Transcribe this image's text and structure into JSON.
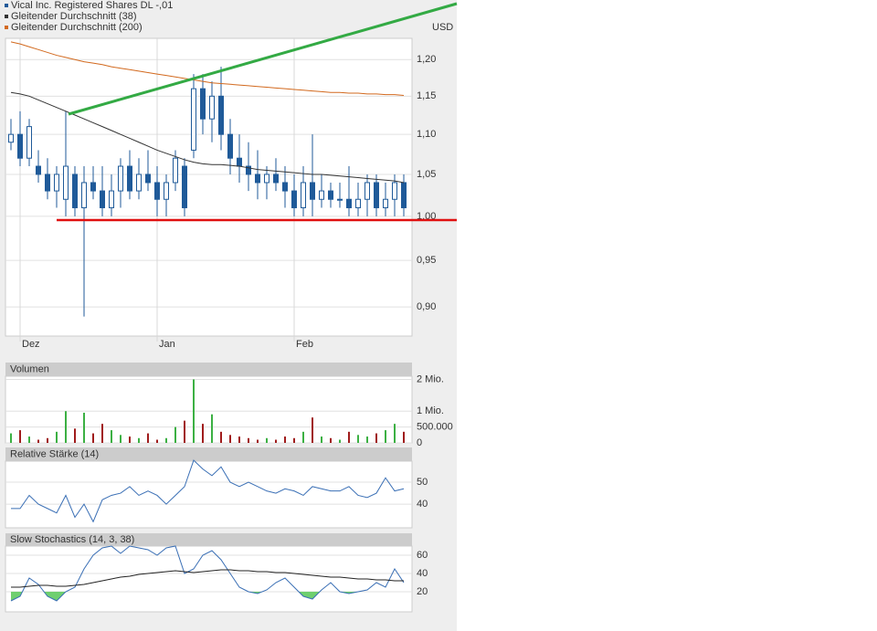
{
  "chart_data": [
    {
      "type": "candlestick",
      "categories": [
        null,
        "Dez",
        null,
        null,
        null,
        null,
        null,
        null,
        null,
        null,
        null,
        null,
        null,
        null,
        null,
        null,
        "Jan",
        null,
        null,
        null,
        null,
        null,
        null,
        null,
        null,
        null,
        null,
        null,
        null,
        null,
        null,
        "Feb",
        null,
        null,
        null,
        null,
        null,
        null,
        null,
        null,
        null,
        null,
        null,
        null
      ],
      "series": [
        {
          "name": "Vical Inc. Registered Shares DL -,01",
          "color": "#1f5a99",
          "open": [
            1.09,
            1.1,
            1.07,
            1.06,
            1.05,
            1.03,
            1.02,
            1.05,
            1.01,
            1.04,
            1.03,
            1.01,
            1.03,
            1.06,
            1.03,
            1.05,
            1.04,
            1.02,
            1.04,
            1.06,
            1.08,
            1.16,
            1.12,
            1.15,
            1.1,
            1.07,
            1.06,
            1.05,
            1.04,
            1.05,
            1.04,
            1.03,
            1.01,
            1.04,
            1.02,
            1.03,
            1.02,
            1.02,
            1.01,
            1.02,
            1.04,
            1.01,
            1.02,
            1.04
          ],
          "high": [
            1.12,
            1.13,
            1.12,
            1.08,
            1.07,
            1.06,
            1.13,
            1.06,
            1.06,
            1.06,
            1.06,
            1.05,
            1.07,
            1.08,
            1.07,
            1.08,
            1.06,
            1.05,
            1.08,
            1.07,
            1.18,
            1.18,
            1.17,
            1.19,
            1.12,
            1.1,
            1.09,
            1.08,
            1.06,
            1.07,
            1.06,
            1.05,
            1.06,
            1.1,
            1.05,
            1.04,
            1.04,
            1.06,
            1.04,
            1.05,
            1.05,
            1.04,
            1.05,
            1.05
          ],
          "low": [
            1.08,
            1.06,
            1.06,
            1.04,
            1.02,
            1.01,
            1.0,
            1.0,
            0.89,
            1.02,
            1.0,
            1.0,
            1.01,
            1.02,
            1.02,
            1.03,
            1.0,
            1.0,
            1.03,
            1.0,
            1.07,
            1.1,
            1.09,
            1.08,
            1.05,
            1.04,
            1.03,
            1.02,
            1.02,
            1.03,
            1.01,
            1.0,
            1.0,
            1.0,
            1.01,
            1.01,
            1.01,
            1.0,
            1.0,
            1.0,
            1.0,
            1.0,
            1.0,
            1.0
          ],
          "close": [
            1.1,
            1.07,
            1.11,
            1.05,
            1.03,
            1.05,
            1.06,
            1.01,
            1.04,
            1.03,
            1.01,
            1.03,
            1.06,
            1.03,
            1.05,
            1.04,
            1.02,
            1.04,
            1.07,
            1.01,
            1.16,
            1.12,
            1.15,
            1.1,
            1.07,
            1.06,
            1.05,
            1.04,
            1.05,
            1.04,
            1.03,
            1.01,
            1.04,
            1.02,
            1.03,
            1.02,
            1.02,
            1.01,
            1.02,
            1.04,
            1.01,
            1.02,
            1.04,
            1.01
          ]
        },
        {
          "name": "Gleitender Durchschnitt (38)",
          "color": "#333333",
          "values": [
            1.155,
            1.153,
            1.15,
            1.145,
            1.14,
            1.135,
            1.13,
            1.125,
            1.12,
            1.115,
            1.11,
            1.105,
            1.1,
            1.095,
            1.09,
            1.085,
            1.08,
            1.076,
            1.072,
            1.068,
            1.065,
            1.063,
            1.062,
            1.062,
            1.061,
            1.06,
            1.058,
            1.056,
            1.055,
            1.054,
            1.053,
            1.052,
            1.051,
            1.05,
            1.05,
            1.049,
            1.048,
            1.047,
            1.046,
            1.045,
            1.044,
            1.043,
            1.042,
            1.04
          ]
        },
        {
          "name": "Gleitender Durchschnitt (200)",
          "color": "#d2691e",
          "values": [
            1.225,
            1.222,
            1.218,
            1.214,
            1.21,
            1.206,
            1.203,
            1.2,
            1.197,
            1.195,
            1.193,
            1.19,
            1.188,
            1.186,
            1.184,
            1.182,
            1.18,
            1.178,
            1.176,
            1.174,
            1.172,
            1.17,
            1.168,
            1.167,
            1.166,
            1.165,
            1.164,
            1.163,
            1.162,
            1.161,
            1.16,
            1.159,
            1.158,
            1.157,
            1.156,
            1.155,
            1.155,
            1.154,
            1.154,
            1.153,
            1.153,
            1.152,
            1.152,
            1.151
          ]
        }
      ],
      "unit": "USD",
      "log": true,
      "grid": true,
      "ylim": [
        0.87,
        1.23
      ],
      "yticks": [
        {
          "value": 0.9,
          "label": "0,90"
        },
        {
          "value": 0.95,
          "label": "0,95"
        },
        {
          "value": 1.0,
          "label": "1,00"
        },
        {
          "value": 1.05,
          "label": "1,05"
        },
        {
          "value": 1.1,
          "label": "1,10"
        },
        {
          "value": 1.15,
          "label": "1,15"
        },
        {
          "value": 1.2,
          "label": "1,20"
        }
      ]
    },
    {
      "type": "bar",
      "title": "Volumen",
      "values": [
        300000,
        400000,
        200000,
        100000,
        150000,
        350000,
        1000000,
        450000,
        950000,
        300000,
        600000,
        400000,
        250000,
        200000,
        150000,
        300000,
        100000,
        150000,
        500000,
        700000,
        2000000,
        600000,
        900000,
        350000,
        250000,
        200000,
        150000,
        100000,
        150000,
        100000,
        200000,
        150000,
        350000,
        800000,
        200000,
        150000,
        100000,
        350000,
        250000,
        200000,
        300000,
        400000,
        600000,
        350000
      ],
      "up_color": "#3cb043",
      "down_color": "#a01c1c",
      "ylim": [
        0,
        2100000
      ],
      "yticks": [
        0,
        {
          "value": 500000,
          "label": "500.000"
        },
        {
          "value": 1000000,
          "label": "1 Mio."
        },
        {
          "value": 2000000,
          "label": "2 Mio."
        }
      ]
    },
    {
      "type": "line",
      "title": "Relative Stärke (14)",
      "series": [
        {
          "color": "#3a6fb5",
          "values": [
            38,
            38,
            44,
            40,
            38,
            36,
            44,
            34,
            40,
            32,
            42,
            44,
            45,
            48,
            44,
            46,
            44,
            40,
            44,
            48,
            60,
            56,
            53,
            57,
            50,
            48,
            50,
            48,
            46,
            45,
            47,
            46,
            44,
            48,
            47,
            46,
            46,
            48,
            44,
            43,
            45,
            52,
            46,
            47
          ]
        }
      ],
      "ylim": [
        29.2,
        59.6
      ],
      "yticks": [
        40,
        50
      ]
    },
    {
      "type": "line",
      "title": "Slow Stochastics (14, 3, 38)",
      "series": [
        {
          "color": "#3a6fb5",
          "values": [
            10,
            15,
            35,
            28,
            15,
            10,
            20,
            25,
            45,
            60,
            68,
            70,
            62,
            70,
            68,
            66,
            60,
            68,
            70,
            40,
            45,
            60,
            65,
            55,
            40,
            25,
            20,
            18,
            22,
            30,
            35,
            25,
            15,
            12,
            22,
            30,
            20,
            18,
            20,
            22,
            30,
            25,
            45,
            30
          ]
        },
        {
          "color": "#222222",
          "values": [
            25,
            25,
            26,
            27,
            27,
            26,
            26,
            27,
            28,
            30,
            32,
            34,
            36,
            37,
            39,
            40,
            41,
            42,
            43,
            42,
            41,
            42,
            43,
            44,
            44,
            43,
            43,
            42,
            42,
            41,
            41,
            40,
            39,
            38,
            37,
            36,
            36,
            35,
            34,
            34,
            33,
            33,
            32,
            32
          ]
        }
      ],
      "fill_below": 20,
      "fill_color": "#6fcf6f",
      "ylim": [
        -2,
        70
      ],
      "yticks": [
        20,
        40,
        60
      ]
    }
  ]
}
